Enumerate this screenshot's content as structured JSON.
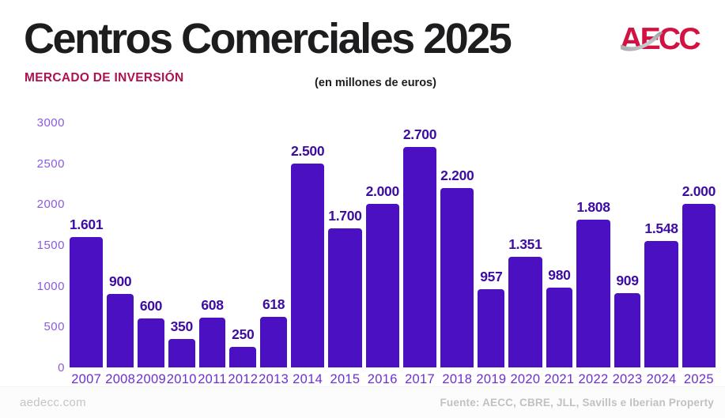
{
  "header": {
    "title": "Centros Comerciales 2025",
    "subtitle": "MERCADO DE INVERSIÓN",
    "units": "(en millones de euros)",
    "logo_text": "AECC"
  },
  "chart_data": {
    "type": "bar",
    "title": "Centros Comerciales 2025",
    "subtitle": "Mercado de inversión (en millones de euros)",
    "categories": [
      "2007",
      "2008",
      "2009",
      "2010",
      "2011",
      "2012",
      "2013",
      "2014",
      "2015",
      "2016",
      "2017",
      "2018",
      "2019",
      "2020",
      "2021",
      "2022",
      "2023",
      "2024",
      "2025"
    ],
    "values": [
      1601,
      900,
      600,
      350,
      608,
      250,
      618,
      2500,
      1700,
      2000,
      2700,
      2200,
      957,
      1351,
      980,
      1808,
      909,
      1548,
      2000
    ],
    "value_labels": [
      "1.601",
      "900",
      "600",
      "350",
      "608",
      "250",
      "618",
      "2.500",
      "1.700",
      "2.000",
      "2.700",
      "2.200",
      "957",
      "1.351",
      "980",
      "1.808",
      "909",
      "1.548",
      "2.000"
    ],
    "xlabel": "",
    "ylabel": "",
    "ylim": [
      0,
      3000
    ],
    "yticks": [
      0,
      500,
      1000,
      1500,
      2000,
      2500,
      3000
    ],
    "grid": false,
    "legend": false,
    "bar_color": "#4A10C1"
  },
  "colors": {
    "title": "#1d1d1f",
    "subtitle": "#AE1150",
    "bar": "#4A10C1",
    "value_label": "#3D0CA3",
    "y_axis_label": "#8A5BE0",
    "x_axis_label": "#6B30D2",
    "logo_red": "#D11243",
    "logo_swoosh": "#b4b6ba",
    "footer_text": "#c2c4c7"
  },
  "footer": {
    "website": "aedecc.com",
    "source": "Fuente: AECC, CBRE, JLL, Savills e Iberian Property"
  }
}
